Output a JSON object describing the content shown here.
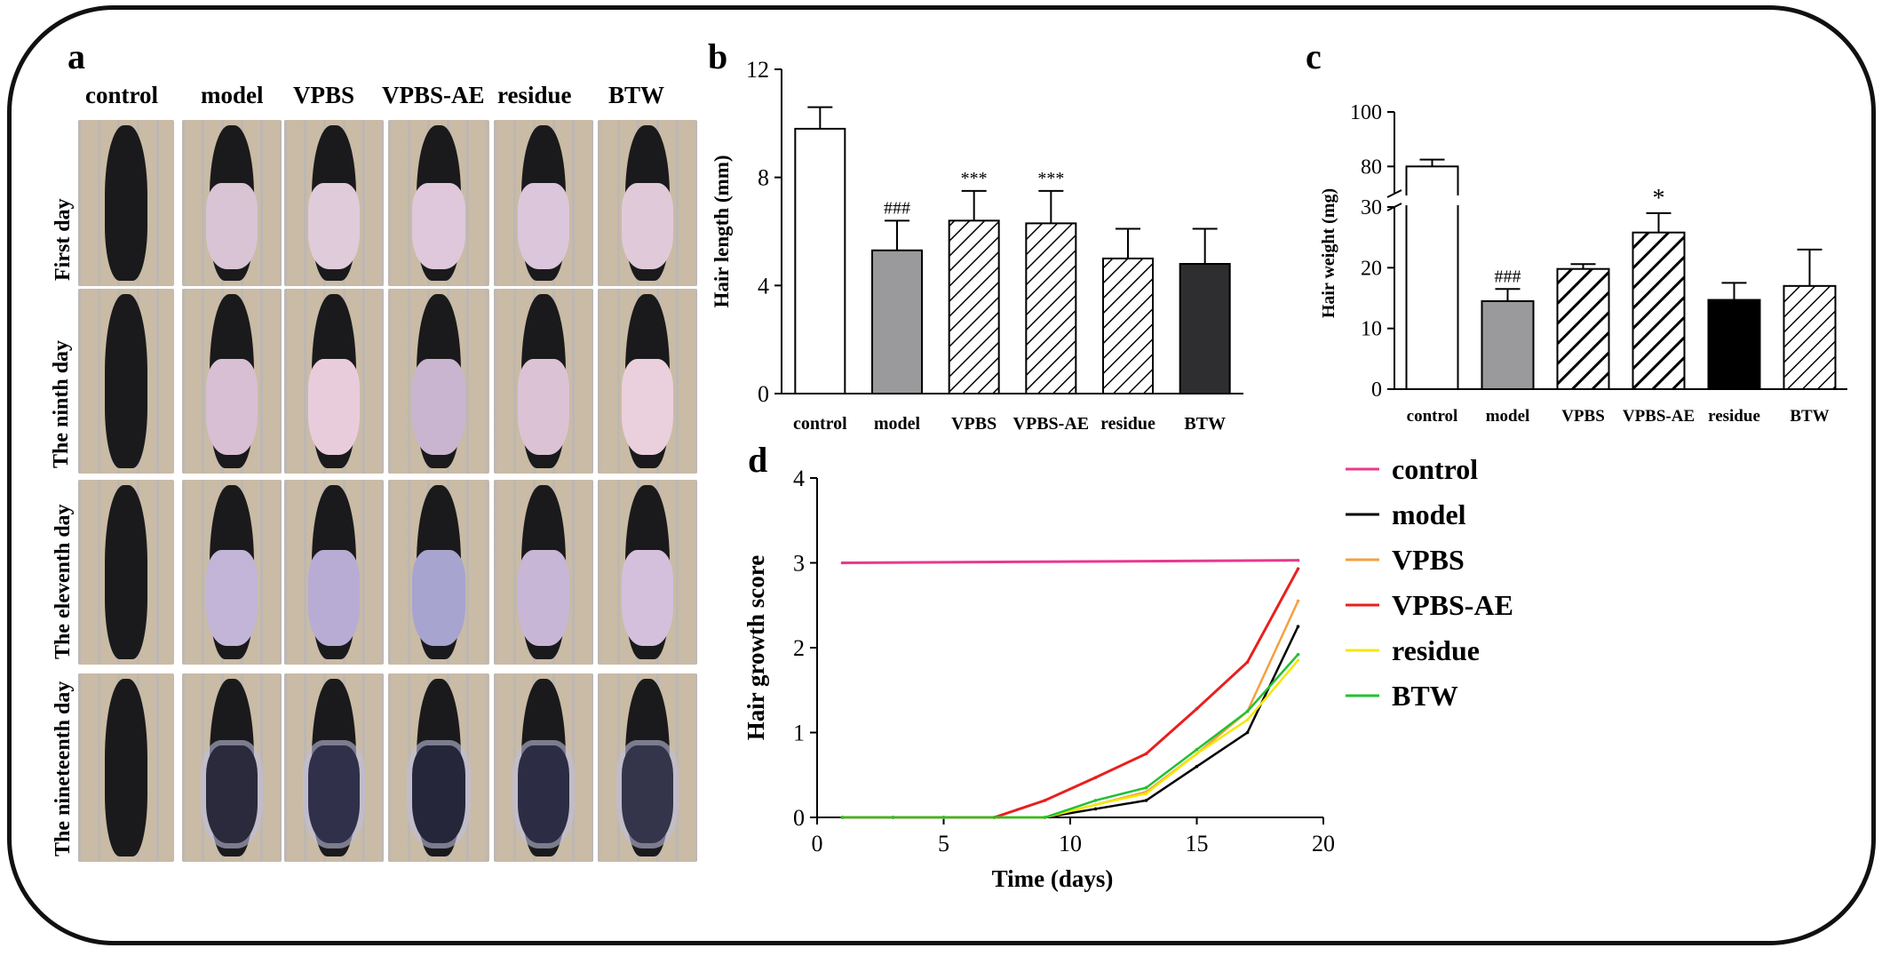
{
  "panels": {
    "a": {
      "letter": "a",
      "columns": [
        "control",
        "model",
        "VPBS",
        "VPBS-AE",
        "residue",
        "BTW"
      ],
      "rows": [
        "First day",
        "The ninth day",
        "The eleventh day",
        "The nineteenth day"
      ]
    },
    "b": {
      "letter": "b"
    },
    "c": {
      "letter": "c"
    },
    "d": {
      "letter": "d"
    }
  },
  "chart_data": [
    {
      "id": "b",
      "type": "bar",
      "categories": [
        "control",
        "model",
        "VPBS",
        "VPBS-AE",
        "residue",
        "BTW"
      ],
      "values": [
        9.8,
        5.3,
        6.4,
        6.3,
        5.0,
        4.8
      ],
      "errors": [
        0.8,
        1.1,
        1.1,
        1.2,
        1.1,
        1.3
      ],
      "annotations": [
        "",
        "###",
        "***",
        "***",
        "",
        ""
      ],
      "ylabel": "Hair length (mm)",
      "xlabel": "",
      "ylim": [
        0,
        12
      ],
      "yticks": [
        0,
        4,
        8,
        12
      ],
      "fills": [
        "white",
        "gray",
        "hatch",
        "hatch",
        "hatch",
        "dark"
      ]
    },
    {
      "id": "c",
      "type": "bar",
      "categories": [
        "control",
        "model",
        "VPBS",
        "VPBS-AE",
        "residue",
        "BTW"
      ],
      "values": [
        80,
        14.5,
        19.8,
        25.8,
        14.7,
        17.0
      ],
      "errors": [
        2.5,
        2.0,
        0.8,
        3.2,
        2.8,
        6.0
      ],
      "annotations": [
        "",
        "###",
        "",
        "*",
        "",
        ""
      ],
      "ylabel": "Hair weight (mg)",
      "xlabel": "",
      "axis_break": {
        "lower": [
          0,
          30
        ],
        "upper": [
          70,
          100
        ]
      },
      "yticks": [
        0,
        10,
        20,
        30,
        80,
        100
      ],
      "fills": [
        "white",
        "gray",
        "hatch-bold",
        "hatch-bold",
        "black",
        "hatch"
      ]
    },
    {
      "id": "d",
      "type": "line",
      "xlabel": "Time (days)",
      "ylabel": "Hair growth score",
      "xlim": [
        0,
        20
      ],
      "ylim": [
        0,
        4
      ],
      "xticks": [
        0,
        5,
        10,
        15,
        20
      ],
      "yticks": [
        0,
        1,
        2,
        3,
        4
      ],
      "legend_position": "right",
      "series": [
        {
          "name": "control",
          "color": "#e8388f",
          "x": [
            1,
            19
          ],
          "y": [
            3.0,
            3.03
          ]
        },
        {
          "name": "model",
          "color": "#000000",
          "x": [
            1,
            3,
            5,
            7,
            9,
            11,
            13,
            15,
            17,
            19
          ],
          "y": [
            0,
            0,
            0,
            0,
            0,
            0.1,
            0.2,
            0.6,
            1.0,
            2.25
          ]
        },
        {
          "name": "VPBS",
          "color": "#f5a040",
          "x": [
            1,
            3,
            5,
            7,
            9,
            11,
            13,
            15,
            17,
            19
          ],
          "y": [
            0,
            0,
            0,
            0,
            0,
            0.15,
            0.3,
            0.75,
            1.25,
            2.55
          ]
        },
        {
          "name": "VPBS-AE",
          "color": "#e8201e",
          "x": [
            1,
            3,
            5,
            7,
            9,
            11,
            13,
            15,
            17,
            19
          ],
          "y": [
            0,
            0,
            0,
            0,
            0.2,
            0.47,
            0.75,
            1.28,
            1.83,
            2.93
          ]
        },
        {
          "name": "residue",
          "color": "#f5e800",
          "x": [
            1,
            3,
            5,
            7,
            9,
            11,
            13,
            15,
            17,
            19
          ],
          "y": [
            0,
            0,
            0,
            0,
            0,
            0.15,
            0.28,
            0.75,
            1.15,
            1.85
          ]
        },
        {
          "name": "BTW",
          "color": "#22c032",
          "x": [
            1,
            3,
            5,
            7,
            9,
            11,
            13,
            15,
            17,
            19
          ],
          "y": [
            0,
            0,
            0,
            0,
            0,
            0.2,
            0.35,
            0.8,
            1.25,
            1.92
          ]
        }
      ]
    }
  ],
  "colors": {
    "gray_bar": "#9a9a9c",
    "dark_bar": "#2e2e30",
    "black_bar": "#000000"
  }
}
